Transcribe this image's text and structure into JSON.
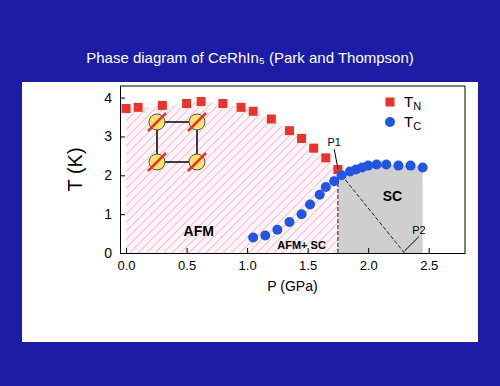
{
  "chart_data": {
    "type": "scatter",
    "title": "Phase diagram of CeRhIn₅ (Park and Thompson)",
    "x_label": "P (GPa)",
    "y_label": "T (K)",
    "xlim": [
      -0.05,
      2.8
    ],
    "ylim": [
      0,
      4.3
    ],
    "xticks": [
      {
        "value": 0,
        "label": "0.0"
      },
      {
        "value": 0.5,
        "label": "0.5"
      },
      {
        "value": 1,
        "label": "1.0"
      },
      {
        "value": 1.5,
        "label": "1.5"
      },
      {
        "value": 2,
        "label": "2.0"
      },
      {
        "value": 2.5,
        "label": "2.5"
      }
    ],
    "yticks": [
      0,
      1,
      2,
      3,
      4
    ],
    "legend": "upper right",
    "series": [
      {
        "name": "TN",
        "color": "#e8342c",
        "marker": "square",
        "x": [
          0.0,
          0.1,
          0.3,
          0.5,
          0.62,
          0.8,
          0.95,
          1.05,
          1.2,
          1.35,
          1.45,
          1.55,
          1.65,
          1.75
        ],
        "values": [
          3.72,
          3.75,
          3.8,
          3.85,
          3.9,
          3.85,
          3.75,
          3.65,
          3.45,
          3.15,
          2.95,
          2.7,
          2.45,
          2.15
        ]
      },
      {
        "name": "TC",
        "color": "#2255e0",
        "marker": "circle",
        "x": [
          1.05,
          1.15,
          1.25,
          1.35,
          1.45,
          1.52,
          1.6,
          1.65,
          1.72,
          1.78,
          1.85,
          1.9,
          1.95,
          2.0,
          2.07,
          2.15,
          2.25,
          2.35,
          2.45
        ],
        "values": [
          0.4,
          0.45,
          0.6,
          0.8,
          1.0,
          1.25,
          1.5,
          1.7,
          1.85,
          2.0,
          2.1,
          2.15,
          2.2,
          2.25,
          2.28,
          2.28,
          2.25,
          2.25,
          2.2
        ]
      }
    ],
    "annotations": [
      {
        "text": "P1",
        "x": 1.72,
        "y": 2.75,
        "target": [
          1.75,
          2.12
        ]
      },
      {
        "text": "P2",
        "x": 2.42,
        "y": 0.5,
        "target": [
          2.3,
          0
        ]
      },
      {
        "text": "SC",
        "x": 2.2,
        "y": 1.35
      },
      {
        "text": "AFM",
        "x": 0.6,
        "y": 0.45
      },
      {
        "text": "AFM+ SC",
        "x": 1.45,
        "y": 0.1
      }
    ]
  }
}
